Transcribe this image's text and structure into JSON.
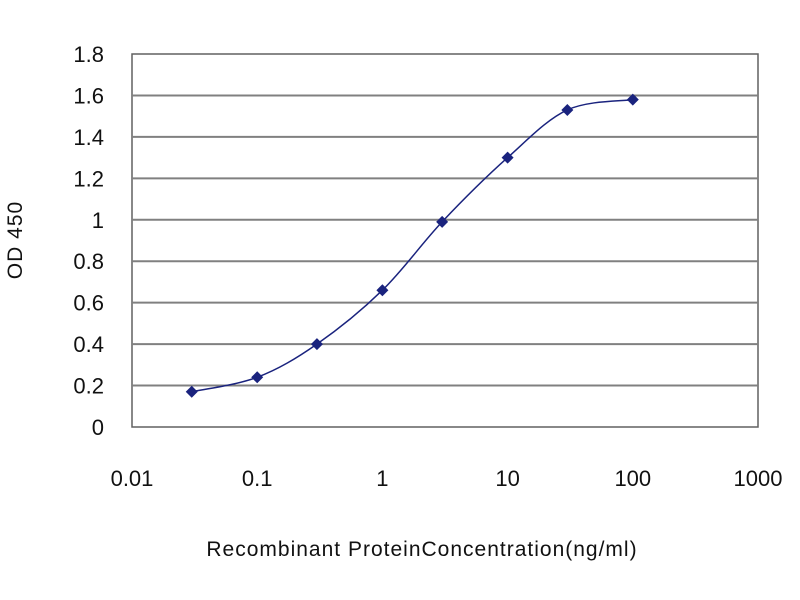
{
  "chart_data": {
    "type": "line",
    "title": "",
    "xlabel": "Recombinant ProteinConcentration(ng/ml)",
    "ylabel": "OD 450",
    "xscale": "log",
    "xlim": [
      0.01,
      1000
    ],
    "ylim": [
      0,
      1.8
    ],
    "x_ticks": [
      "0.01",
      "0.1",
      "1",
      "10",
      "100",
      "1000"
    ],
    "y_ticks": [
      "0",
      "0.2",
      "0.4",
      "0.6",
      "0.8",
      "1",
      "1.2",
      "1.4",
      "1.6",
      "1.8"
    ],
    "grid": "horizontal",
    "legend": "none",
    "series": [
      {
        "x": [
          0.03,
          0.1,
          0.3,
          1,
          3,
          10,
          30,
          100
        ],
        "y": [
          0.17,
          0.24,
          0.4,
          0.66,
          0.99,
          1.3,
          1.53,
          1.58
        ],
        "color": "#1a237e",
        "marker": "diamond"
      }
    ],
    "colors": {
      "grid": "#808080",
      "line": "#1a237e",
      "frame": "#606060"
    }
  }
}
